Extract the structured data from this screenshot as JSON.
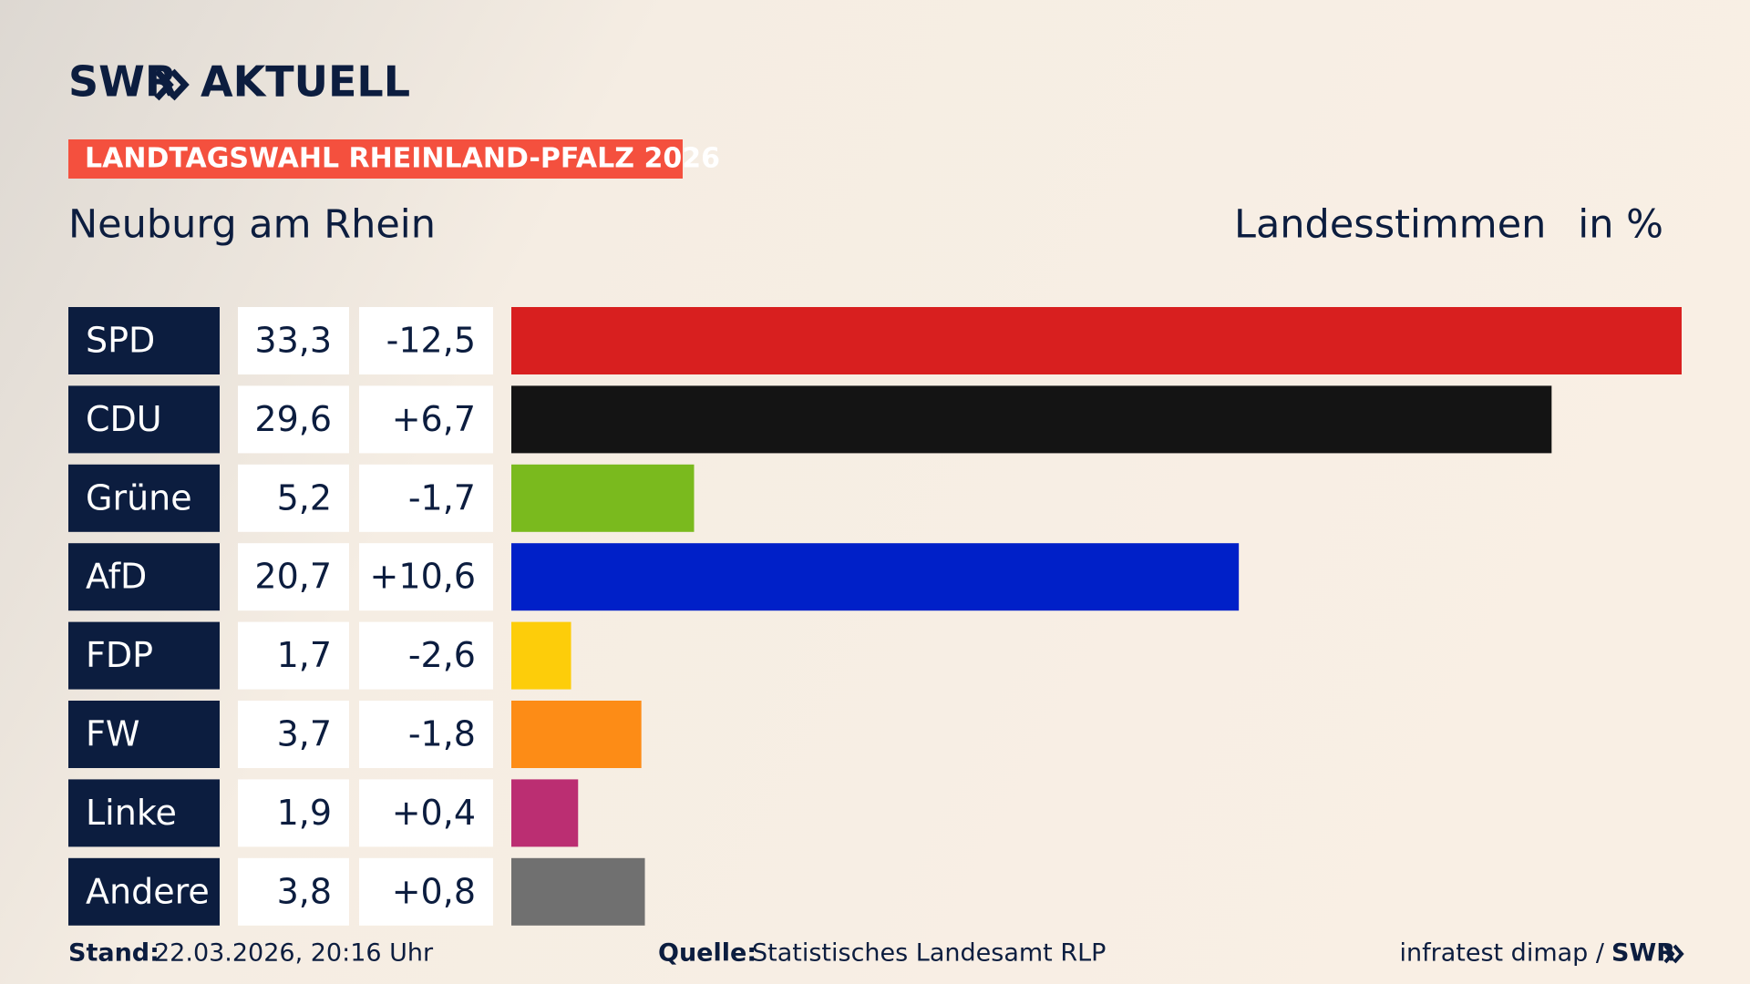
{
  "chart_data": {
    "type": "bar",
    "brand": "SWR",
    "brand_product": "AKTUELL",
    "badge": "LANDTAGSWAHL RHEINLAND-PFALZ 2026",
    "title": "Neuburg am Rhein",
    "subtitle": "Landesstimmen",
    "unit": "in %",
    "categories": [
      "SPD",
      "CDU",
      "Grüne",
      "AfD",
      "FDP",
      "FW",
      "Linke",
      "Andere"
    ],
    "values": [
      33.3,
      29.6,
      5.2,
      20.7,
      1.7,
      3.7,
      1.9,
      3.8
    ],
    "value_labels": [
      "33,3",
      "29,6",
      "5,2",
      "20,7",
      "1,7",
      "3,7",
      "1,9",
      "3,8"
    ],
    "changes": [
      -12.5,
      6.7,
      -1.7,
      10.6,
      -2.6,
      -1.8,
      0.4,
      0.8
    ],
    "change_labels": [
      "-12,5",
      "+6,7",
      "-1,7",
      "+10,6",
      "-2,6",
      "-1,8",
      "+0,4",
      "+0,8"
    ],
    "colors": [
      "#d81f1f",
      "#141414",
      "#7aba1e",
      "#0020c8",
      "#fdcd0a",
      "#fd8c16",
      "#bb2e72",
      "#707070"
    ],
    "stand_label": "Stand:",
    "stand": "22.03.2026, 20:16 Uhr",
    "source_label": "Quelle:",
    "source": "Statistisches Landesamt RLP",
    "credit": "infratest dimap /",
    "credit_brand": "SWR"
  }
}
